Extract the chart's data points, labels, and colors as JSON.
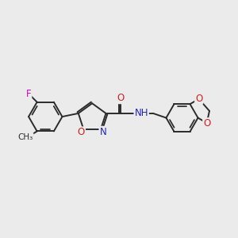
{
  "background_color": "#ebebeb",
  "bond_color": "#2b2b2b",
  "bond_width": 1.4,
  "atom_colors": {
    "C": "#2b2b2b",
    "N": "#2222bb",
    "O": "#cc2222",
    "F": "#cc00cc",
    "H": "#2b2b2b"
  },
  "font_size": 8.5,
  "fig_size": [
    3.0,
    3.0
  ],
  "dpi": 100,
  "scale": 1.0
}
